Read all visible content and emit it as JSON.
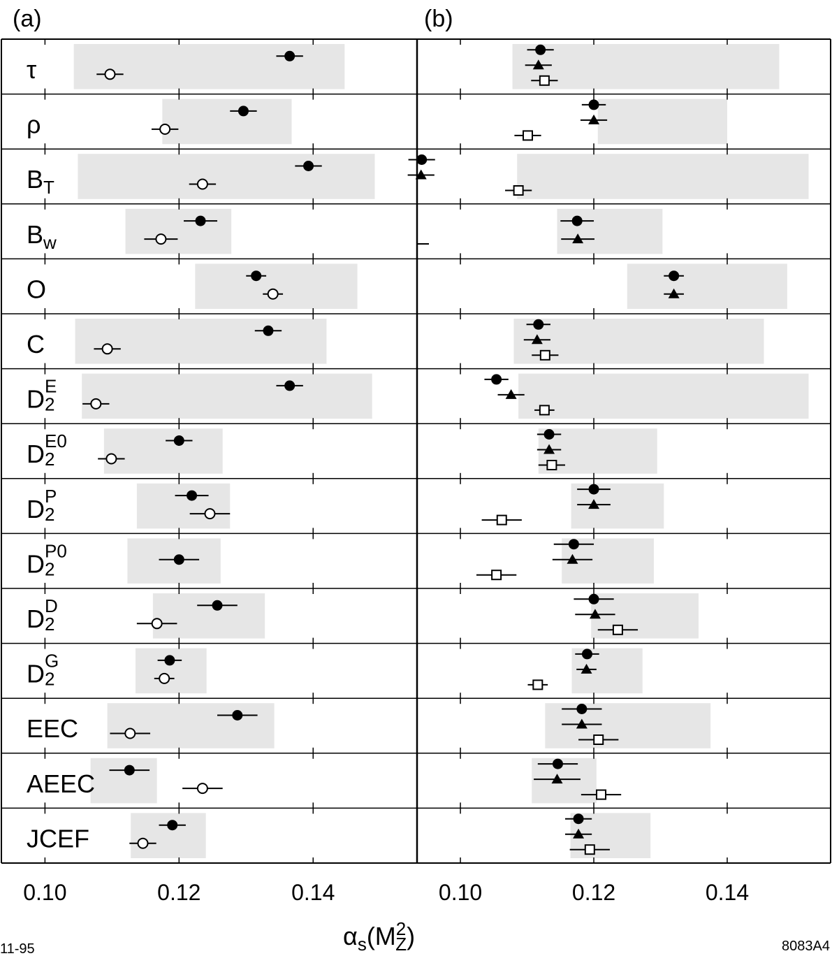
{
  "panel_labels": [
    "(a)",
    "(b)"
  ],
  "footer": {
    "left_ref": "11-95",
    "right_ref": "8083A4"
  },
  "xlabel": {
    "base": "α",
    "sub": "s",
    "paren_open": "(M",
    "sup": "2",
    "sub2": "Z",
    "paren_close": ")"
  },
  "colors": {
    "band": "#e6e6e6",
    "line": "#000000",
    "filled": "#000000",
    "open": "#ffffff"
  },
  "chart_data": [
    {
      "type": "scatter",
      "panel": "(a)",
      "xlim": [
        0.0935,
        0.1555
      ],
      "x_ticks": [
        0.1,
        0.12,
        0.14
      ],
      "x_tick_labels": [
        "0.10",
        "0.12",
        "0.14"
      ],
      "series": [
        {
          "marker": "filled-circle"
        },
        {
          "marker": "open-circle"
        }
      ],
      "rows": [
        {
          "label": {
            "main": "τ",
            "sub": "",
            "sup": ""
          },
          "band": [
            0.1043,
            0.1447
          ],
          "points": [
            {
              "series": 0,
              "x": 0.1365,
              "err": 0.002
            },
            {
              "series": 1,
              "x": 0.1097,
              "err": 0.002
            }
          ]
        },
        {
          "label": {
            "main": "ρ",
            "sub": "",
            "sup": ""
          },
          "band": [
            0.1175,
            0.1368
          ],
          "points": [
            {
              "series": 0,
              "x": 0.1296,
              "err": 0.002
            },
            {
              "series": 1,
              "x": 0.1179,
              "err": 0.002
            }
          ]
        },
        {
          "label": {
            "main": "B",
            "sub": "T",
            "sup": ""
          },
          "band": [
            0.1049,
            0.1492
          ],
          "points": [
            {
              "series": 0,
              "x": 0.1393,
              "err": 0.002
            },
            {
              "series": 1,
              "x": 0.1235,
              "err": 0.002
            }
          ]
        },
        {
          "label": {
            "main": "B",
            "sub": "w",
            "sup": ""
          },
          "band": [
            0.112,
            0.1278
          ],
          "points": [
            {
              "series": 0,
              "x": 0.1232,
              "err": 0.0025
            },
            {
              "series": 1,
              "x": 0.1173,
              "err": 0.0025
            }
          ]
        },
        {
          "label": {
            "main": "O",
            "sub": "",
            "sup": ""
          },
          "band": [
            0.1224,
            0.1466
          ],
          "points": [
            {
              "series": 0,
              "x": 0.1315,
              "err": 0.0015
            },
            {
              "series": 1,
              "x": 0.134,
              "err": 0.0015
            }
          ]
        },
        {
          "label": {
            "main": "C",
            "sub": "",
            "sup": ""
          },
          "band": [
            0.1045,
            0.142
          ],
          "points": [
            {
              "series": 0,
              "x": 0.1333,
              "err": 0.002
            },
            {
              "series": 1,
              "x": 0.1093,
              "err": 0.002
            }
          ]
        },
        {
          "label": {
            "main": "D",
            "sub": "2",
            "sup": "E"
          },
          "band": [
            0.1055,
            0.1488
          ],
          "points": [
            {
              "series": 0,
              "x": 0.1365,
              "err": 0.002
            },
            {
              "series": 1,
              "x": 0.1076,
              "err": 0.002
            }
          ]
        },
        {
          "label": {
            "main": "D",
            "sub": "2",
            "sup": "E0"
          },
          "band": [
            0.1088,
            0.1265
          ],
          "points": [
            {
              "series": 0,
              "x": 0.12,
              "err": 0.002
            },
            {
              "series": 1,
              "x": 0.1099,
              "err": 0.002
            }
          ]
        },
        {
          "label": {
            "main": "D",
            "sub": "2",
            "sup": "P"
          },
          "band": [
            0.1137,
            0.1276
          ],
          "points": [
            {
              "series": 0,
              "x": 0.1219,
              "err": 0.0025
            },
            {
              "series": 1,
              "x": 0.1246,
              "err": 0.003
            }
          ]
        },
        {
          "label": {
            "main": "D",
            "sub": "2",
            "sup": "P0"
          },
          "band": [
            0.1123,
            0.1262
          ],
          "points": [
            {
              "series": 0,
              "x": 0.12,
              "err": 0.003
            }
          ]
        },
        {
          "label": {
            "main": "D",
            "sub": "2",
            "sup": "D"
          },
          "band": [
            0.1161,
            0.1328
          ],
          "points": [
            {
              "series": 0,
              "x": 0.1257,
              "err": 0.003
            },
            {
              "series": 1,
              "x": 0.1167,
              "err": 0.003
            }
          ]
        },
        {
          "label": {
            "main": "D",
            "sub": "2",
            "sup": "G"
          },
          "band": [
            0.1135,
            0.1241
          ],
          "points": [
            {
              "series": 0,
              "x": 0.1186,
              "err": 0.0018
            },
            {
              "series": 1,
              "x": 0.1178,
              "err": 0.0015
            }
          ]
        },
        {
          "label": {
            "main": "EEC",
            "sub": "",
            "sup": ""
          },
          "band": [
            0.1093,
            0.1342
          ],
          "points": [
            {
              "series": 0,
              "x": 0.1287,
              "err": 0.003
            },
            {
              "series": 1,
              "x": 0.1127,
              "err": 0.003
            }
          ]
        },
        {
          "label": {
            "main": "AEEC",
            "sub": "",
            "sup": ""
          },
          "band": [
            0.1068,
            0.1167
          ],
          "points": [
            {
              "series": 0,
              "x": 0.1126,
              "err": 0.003
            },
            {
              "series": 1,
              "x": 0.1235,
              "err": 0.003
            }
          ]
        },
        {
          "label": {
            "main": "JCEF",
            "sub": "",
            "sup": ""
          },
          "band": [
            0.1128,
            0.124
          ],
          "points": [
            {
              "series": 0,
              "x": 0.119,
              "err": 0.002
            },
            {
              "series": 1,
              "x": 0.1146,
              "err": 0.002
            }
          ]
        }
      ]
    },
    {
      "type": "scatter",
      "panel": "(b)",
      "xlim": [
        0.0935,
        0.1555
      ],
      "x_ticks": [
        0.1,
        0.12,
        0.14
      ],
      "x_tick_labels": [
        "0.10",
        "0.12",
        "0.14"
      ],
      "series": [
        {
          "marker": "filled-circle"
        },
        {
          "marker": "filled-triangle"
        },
        {
          "marker": "open-square"
        }
      ],
      "rows": [
        {
          "band": [
            0.1078,
            0.1478
          ],
          "points": [
            {
              "series": 0,
              "x": 0.112,
              "err": 0.002
            },
            {
              "series": 1,
              "x": 0.1117,
              "err": 0.002
            },
            {
              "series": 2,
              "x": 0.1126,
              "err": 0.002
            }
          ]
        },
        {
          "band": [
            0.1206,
            0.14
          ],
          "points": [
            {
              "series": 0,
              "x": 0.12,
              "err": 0.0018
            },
            {
              "series": 1,
              "x": 0.12,
              "err": 0.002
            },
            {
              "series": 2,
              "x": 0.1101,
              "err": 0.002
            }
          ]
        },
        {
          "band": [
            0.1085,
            0.1522
          ],
          "points": [
            {
              "series": 0,
              "x": 0.0942,
              "err": 0.002
            },
            {
              "series": 1,
              "x": 0.0941,
              "err": 0.002
            },
            {
              "series": 2,
              "x": 0.1087,
              "err": 0.002
            }
          ]
        },
        {
          "band": [
            0.1145,
            0.1303
          ],
          "points": [
            {
              "series": 0,
              "x": 0.1175,
              "err": 0.0025
            },
            {
              "series": 1,
              "x": 0.1176,
              "err": 0.0025
            }
          ]
        },
        {
          "band": [
            0.125,
            0.149
          ],
          "points": [
            {
              "series": 0,
              "x": 0.132,
              "err": 0.0015
            },
            {
              "series": 1,
              "x": 0.132,
              "err": 0.0015
            }
          ]
        },
        {
          "band": [
            0.108,
            0.1455
          ],
          "points": [
            {
              "series": 0,
              "x": 0.1117,
              "err": 0.0018
            },
            {
              "series": 1,
              "x": 0.1115,
              "err": 0.002
            },
            {
              "series": 2,
              "x": 0.1127,
              "err": 0.002
            }
          ]
        },
        {
          "band": [
            0.1087,
            0.1522
          ],
          "points": [
            {
              "series": 0,
              "x": 0.1054,
              "err": 0.0018
            },
            {
              "series": 1,
              "x": 0.1076,
              "err": 0.002
            },
            {
              "series": 2,
              "x": 0.1126,
              "err": 0.0015
            }
          ]
        },
        {
          "band": [
            0.1117,
            0.1295
          ],
          "points": [
            {
              "series": 0,
              "x": 0.1133,
              "err": 0.0018
            },
            {
              "series": 1,
              "x": 0.1133,
              "err": 0.0018
            },
            {
              "series": 2,
              "x": 0.1137,
              "err": 0.002
            }
          ]
        },
        {
          "band": [
            0.1166,
            0.1305
          ],
          "points": [
            {
              "series": 0,
              "x": 0.12,
              "err": 0.0025
            },
            {
              "series": 1,
              "x": 0.12,
              "err": 0.0025
            },
            {
              "series": 2,
              "x": 0.1062,
              "err": 0.003
            }
          ]
        },
        {
          "band": [
            0.1152,
            0.129
          ],
          "points": [
            {
              "series": 0,
              "x": 0.117,
              "err": 0.003
            },
            {
              "series": 1,
              "x": 0.1168,
              "err": 0.003
            },
            {
              "series": 2,
              "x": 0.1054,
              "err": 0.003
            }
          ]
        },
        {
          "band": [
            0.1196,
            0.1357
          ],
          "points": [
            {
              "series": 0,
              "x": 0.12,
              "err": 0.003
            },
            {
              "series": 1,
              "x": 0.1202,
              "err": 0.003
            },
            {
              "series": 2,
              "x": 0.1236,
              "err": 0.003
            }
          ]
        },
        {
          "band": [
            0.1167,
            0.1273
          ],
          "points": [
            {
              "series": 0,
              "x": 0.119,
              "err": 0.0018
            },
            {
              "series": 1,
              "x": 0.1189,
              "err": 0.0015
            },
            {
              "series": 2,
              "x": 0.1116,
              "err": 0.0015
            }
          ]
        },
        {
          "band": [
            0.1127,
            0.1375
          ],
          "points": [
            {
              "series": 0,
              "x": 0.1182,
              "err": 0.003
            },
            {
              "series": 1,
              "x": 0.1182,
              "err": 0.003
            },
            {
              "series": 2,
              "x": 0.1207,
              "err": 0.003
            }
          ]
        },
        {
          "band": [
            0.1107,
            0.1204
          ],
          "points": [
            {
              "series": 0,
              "x": 0.1146,
              "err": 0.003
            },
            {
              "series": 1,
              "x": 0.1145,
              "err": 0.0035
            },
            {
              "series": 2,
              "x": 0.1211,
              "err": 0.003
            }
          ]
        },
        {
          "band": [
            0.1165,
            0.1285
          ],
          "points": [
            {
              "series": 0,
              "x": 0.1177,
              "err": 0.002
            },
            {
              "series": 1,
              "x": 0.1177,
              "err": 0.002
            },
            {
              "series": 2,
              "x": 0.1194,
              "err": 0.003
            }
          ]
        }
      ]
    }
  ]
}
